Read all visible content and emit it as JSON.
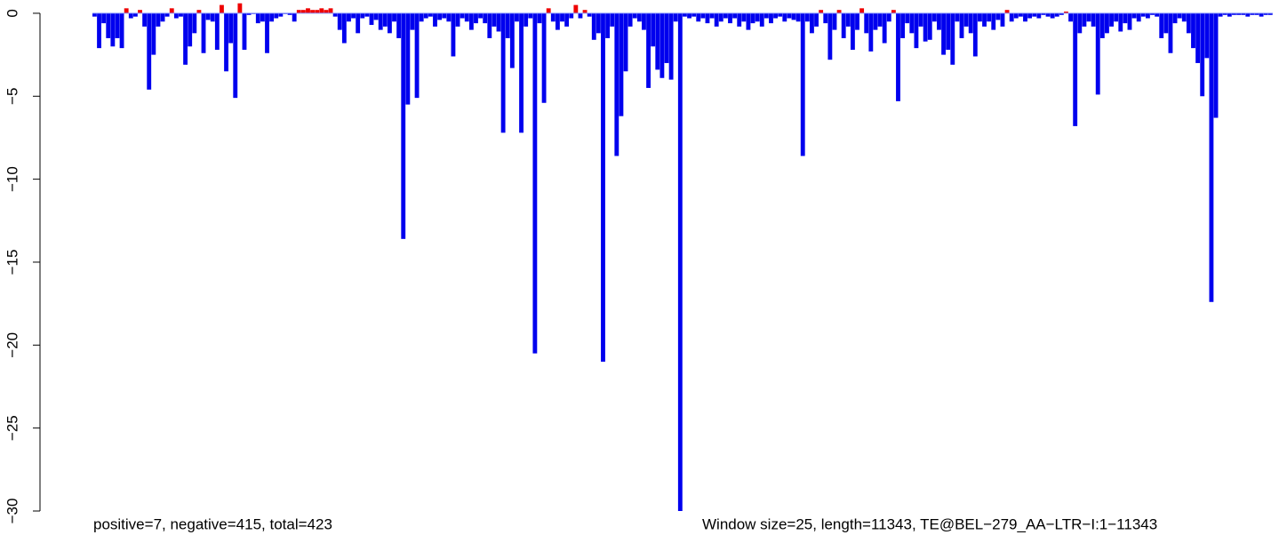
{
  "chart_data": {
    "type": "bar",
    "ylim": [
      -30,
      0.8
    ],
    "yticks": [
      0,
      {
        "value": -5,
        "label": "−5"
      },
      {
        "value": -10,
        "label": "−10"
      },
      {
        "value": -15,
        "label": "−15"
      },
      {
        "value": -20,
        "label": "−20"
      },
      {
        "value": -25,
        "label": "−25"
      },
      {
        "value": -30,
        "label": "−30"
      }
    ],
    "color": "#0000ee",
    "positive_color": "#ee0000",
    "baseline_color": "#8899ff",
    "left_note": "positive=7, negative=415, total=423",
    "right_note": "Window size=25, length=11343, TE@BEL−279_AA−LTR−I:1−11343",
    "values": [
      -0.2,
      -2.1,
      -0.6,
      -1.5,
      -2,
      -1.5,
      -2.1,
      0.3,
      -0.3,
      -0.2,
      0.2,
      -0.8,
      -4.6,
      -2.5,
      -0.8,
      -0.5,
      -0.2,
      0.3,
      -0.3,
      -0.2,
      -3.1,
      -2,
      -1.2,
      0.2,
      -2.4,
      -0.4,
      -0.5,
      -2.2,
      0.5,
      -3.5,
      -1.8,
      -5.1,
      0.6,
      -2.2,
      -0.1,
      0,
      -0.6,
      -0.5,
      -2.4,
      -0.5,
      -0.3,
      -0.2,
      0,
      -0.1,
      -0.5,
      0.2,
      0.2,
      0.3,
      0.2,
      0.2,
      0.3,
      0.2,
      0.3,
      -0.2,
      -1,
      -1.8,
      -0.5,
      -0.3,
      -1.2,
      -0.3,
      -0.2,
      -0.7,
      -0.4,
      -1,
      -0.8,
      -1.2,
      -0.5,
      -1.5,
      -13.6,
      -5.5,
      -1,
      -5.1,
      -0.5,
      -0.3,
      -0.2,
      -0.8,
      -0.4,
      -0.3,
      -0.5,
      -2.6,
      -0.8,
      -0.3,
      -0.5,
      -1,
      -0.6,
      -0.3,
      -0.6,
      -1.5,
      -0.8,
      -1.1,
      -7.2,
      -1.5,
      -3.3,
      -0.5,
      -7.2,
      -0.8,
      -0.3,
      -20.5,
      -0.6,
      -5.4,
      0.3,
      -0.5,
      -1,
      -0.5,
      -0.8,
      -0.3,
      0.5,
      -0.3,
      0.2,
      -0.2,
      -1.6,
      -1.2,
      -21,
      -1.5,
      -0.8,
      -8.6,
      -6.2,
      -3.5,
      -0.8,
      -0.3,
      -0.5,
      -1,
      -4.5,
      -2,
      -3.4,
      -3.9,
      -3,
      -4,
      -0.5,
      -30,
      -0.2,
      -0.3,
      -0.2,
      -0.5,
      -0.3,
      -0.6,
      -0.3,
      -0.8,
      -0.5,
      -0.3,
      -0.6,
      -0.3,
      -0.8,
      -0.5,
      -1,
      -0.6,
      -0.5,
      -0.8,
      -0.3,
      -0.6,
      -0.3,
      -0.2,
      -0.5,
      -0.3,
      -0.4,
      -0.5,
      -8.6,
      -0.5,
      -1.2,
      -0.8,
      0.2,
      -0.6,
      -2.8,
      -1,
      0.2,
      -1.5,
      -0.8,
      -2.2,
      -1,
      0.3,
      -1.2,
      -2.3,
      -1,
      -0.8,
      -1.8,
      -0.5,
      0.2,
      -5.3,
      -1.5,
      -0.6,
      -1.2,
      -2.1,
      -0.8,
      -1.7,
      -1.6,
      -0.5,
      -1,
      -2.5,
      -2.2,
      -3.1,
      -0.5,
      -1.5,
      -0.8,
      -1.2,
      -2.6,
      -0.5,
      -0.8,
      -0.5,
      -1,
      -0.4,
      -0.8,
      0.2,
      -0.5,
      -0.3,
      -0.2,
      -0.5,
      -0.3,
      -0.2,
      -0.3,
      -0.1,
      -0.2,
      -0.3,
      -0.2,
      -0.1,
      0.1,
      -0.5,
      -6.8,
      -1.2,
      -0.8,
      -0.5,
      -0.8,
      -4.9,
      -1.5,
      -1.2,
      -0.8,
      -0.5,
      -1.1,
      -0.6,
      -1,
      -0.3,
      -0.5,
      -0.2,
      -0.3,
      -0.1,
      -0.2,
      -1.5,
      -1.2,
      -2.4,
      -0.6,
      -0.3,
      -0.5,
      -1.2,
      -2.1,
      -3,
      -5,
      -2.7,
      -17.4,
      -6.3,
      -0.2,
      -0.1,
      -0.2,
      -0.1,
      -0.1,
      -0.1,
      -0.2,
      -0.1,
      -0.1,
      -0.2,
      -0.1,
      -0.1
    ]
  }
}
